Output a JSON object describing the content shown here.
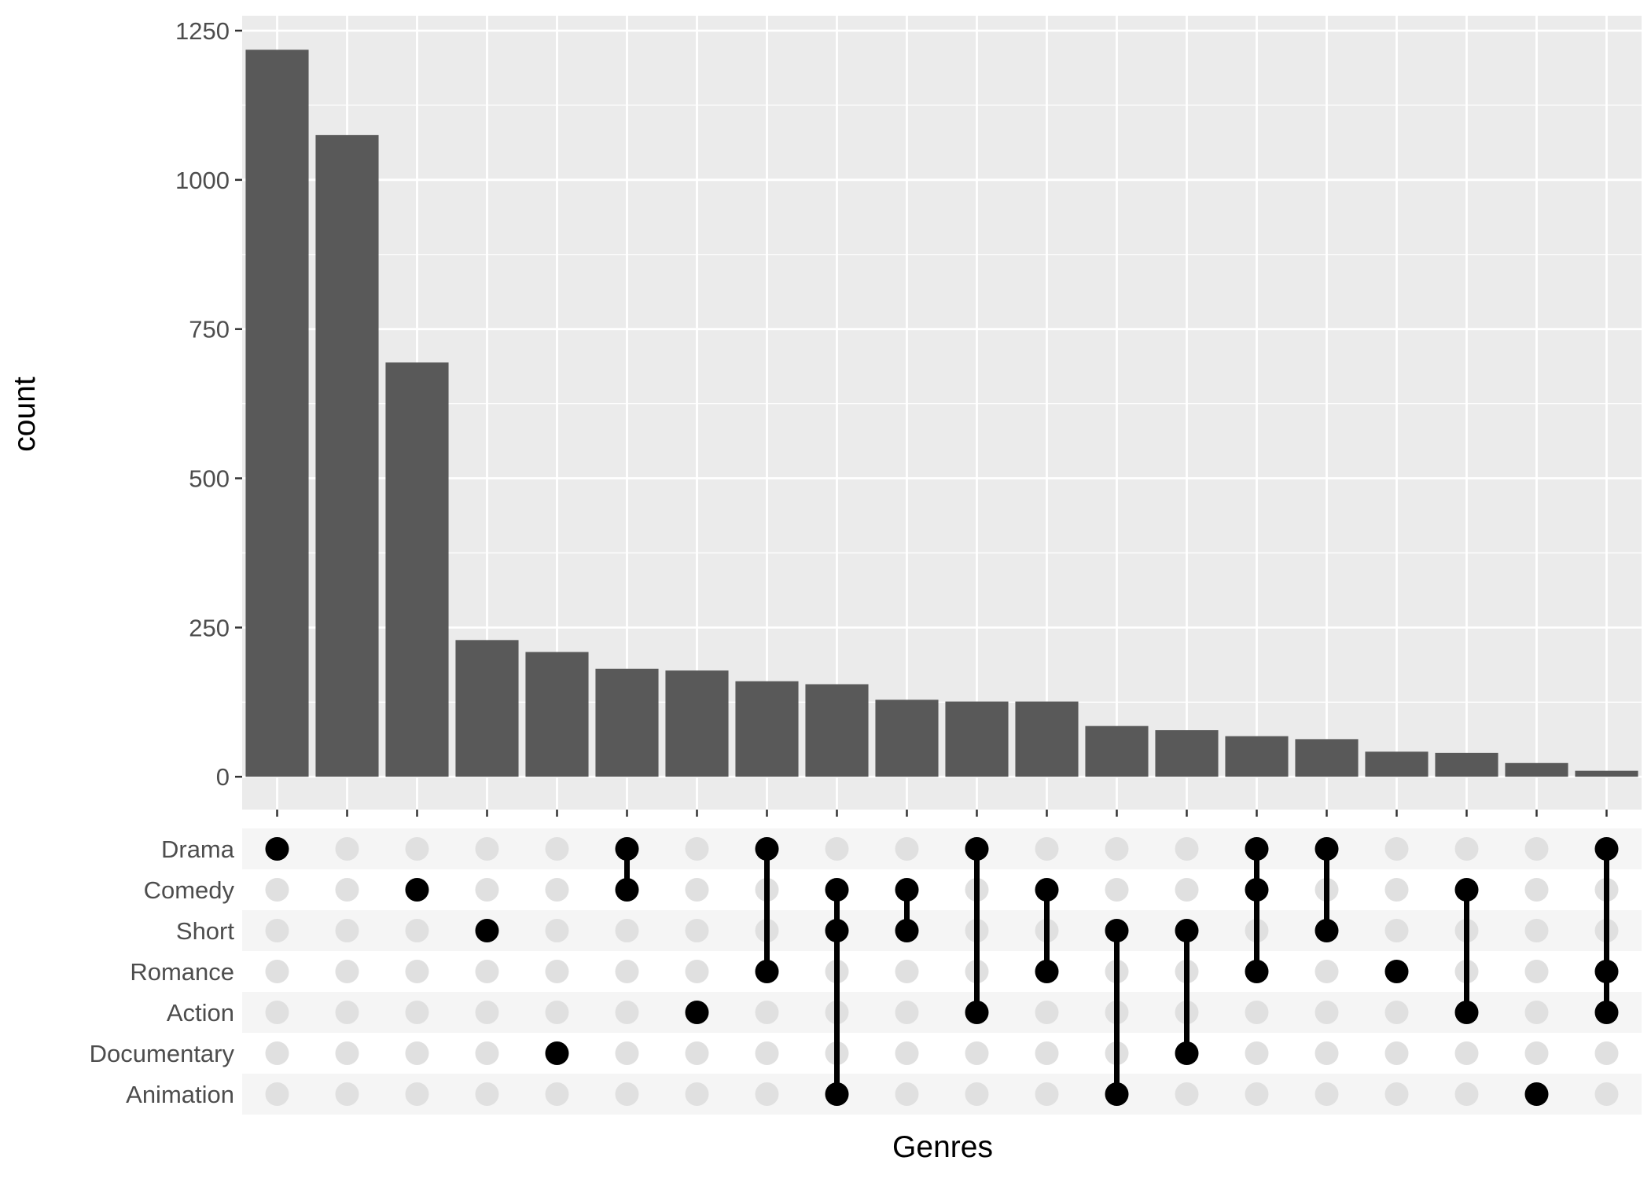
{
  "chart_data": {
    "type": "bar",
    "xlabel": "Genres",
    "ylabel": "count",
    "ylim": [
      -55,
      1275
    ],
    "y_ticks": [
      0,
      250,
      500,
      750,
      1000,
      1250
    ],
    "grid": true,
    "sets": [
      "Drama",
      "Comedy",
      "Short",
      "Romance",
      "Action",
      "Documentary",
      "Animation"
    ],
    "values": [
      1218,
      1075,
      694,
      229,
      209,
      181,
      178,
      160,
      155,
      129,
      126,
      126,
      85,
      78,
      68,
      63,
      42,
      40,
      23,
      10
    ],
    "intersections": [
      [
        "Drama"
      ],
      [],
      [
        "Comedy"
      ],
      [
        "Short"
      ],
      [
        "Documentary"
      ],
      [
        "Drama",
        "Comedy"
      ],
      [
        "Action"
      ],
      [
        "Drama",
        "Romance"
      ],
      [
        "Comedy",
        "Short",
        "Animation"
      ],
      [
        "Comedy",
        "Short"
      ],
      [
        "Drama",
        "Action"
      ],
      [
        "Comedy",
        "Romance"
      ],
      [
        "Short",
        "Animation"
      ],
      [
        "Short",
        "Documentary"
      ],
      [
        "Drama",
        "Comedy",
        "Romance"
      ],
      [
        "Drama",
        "Short"
      ],
      [
        "Romance"
      ],
      [
        "Comedy",
        "Action"
      ],
      [
        "Animation"
      ],
      [
        "Drama",
        "Romance",
        "Action"
      ]
    ],
    "colors": {
      "bar": "#595959",
      "panel": "#ebebeb",
      "grid": "#ffffff",
      "dot_active": "#000000",
      "dot_inactive": "#e0e0e0",
      "matrix_stripe": "#f5f5f5"
    }
  }
}
